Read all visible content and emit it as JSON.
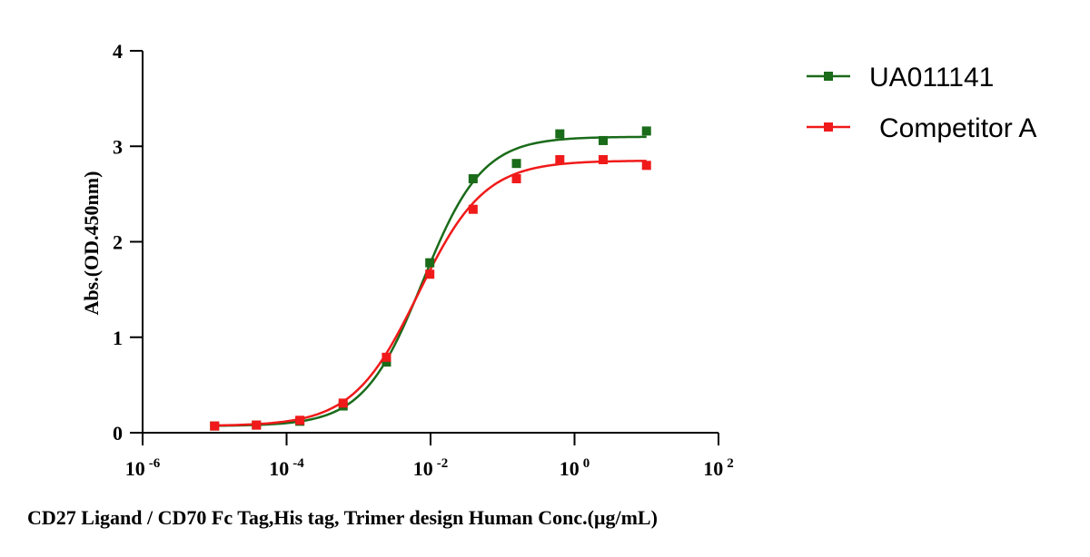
{
  "chart_data": {
    "type": "scatter",
    "xscale": "log",
    "xlim": [
      1e-06,
      100
    ],
    "ylim": [
      0,
      4
    ],
    "x_ticks": [
      {
        "base": "10",
        "exp": "-6"
      },
      {
        "base": "10",
        "exp": "-4"
      },
      {
        "base": "10",
        "exp": "-2"
      },
      {
        "base": "10",
        "exp": "0"
      },
      {
        "base": "10",
        "exp": "2"
      }
    ],
    "y_ticks": [
      "0",
      "1",
      "2",
      "3",
      "4"
    ],
    "xlabel": "CD27 Ligand / CD70 Fc Tag,His tag, Trimer design Human Conc.(μg/mL)",
    "ylabel": "Abs.(OD.450nm)",
    "legend_position": "top-right",
    "x": [
      1e-05,
      3.81e-05,
      0.000153,
      0.00061,
      0.00244,
      0.00977,
      0.039,
      0.156,
      0.625,
      2.5,
      10
    ],
    "series": [
      {
        "name": "UA011141",
        "color": "#1a6b1a",
        "values": [
          0.07,
          0.08,
          0.12,
          0.28,
          0.74,
          1.78,
          2.66,
          2.82,
          3.13,
          3.06,
          3.16
        ],
        "fit": {
          "bottom": 0.07,
          "top": 3.1,
          "ec50": 0.0078,
          "hill": 1.05
        }
      },
      {
        "name": "Competitor A",
        "color": "#f01a1a",
        "values": [
          0.07,
          0.08,
          0.13,
          0.31,
          0.79,
          1.66,
          2.34,
          2.66,
          2.86,
          2.86,
          2.8
        ],
        "fit": {
          "bottom": 0.07,
          "top": 2.85,
          "ec50": 0.0068,
          "hill": 0.95
        }
      }
    ]
  }
}
